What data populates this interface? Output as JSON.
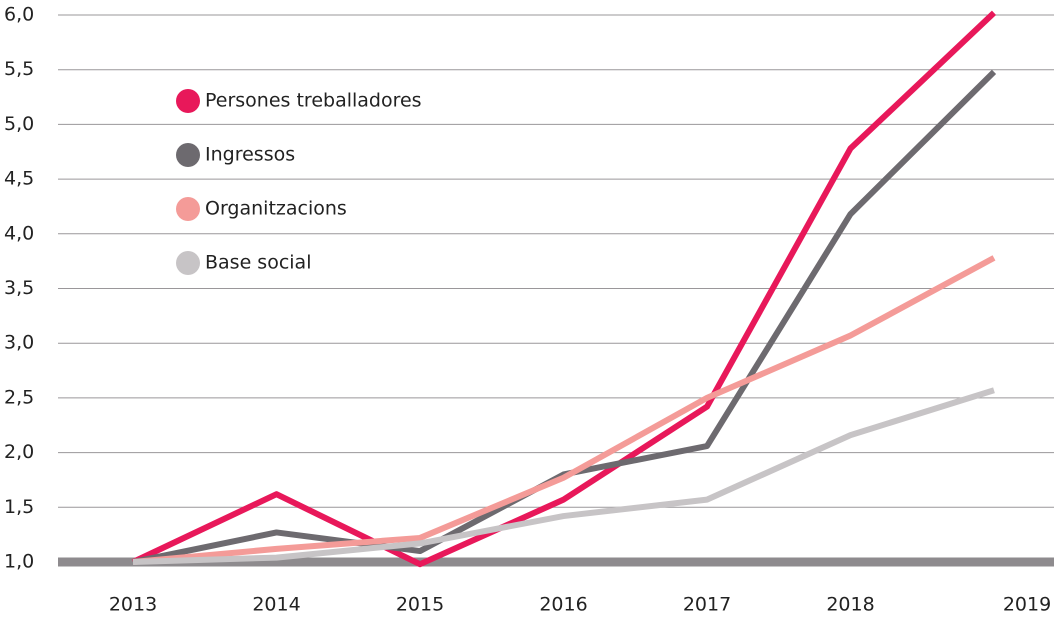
{
  "chart_data": {
    "type": "line",
    "categories": [
      "2013",
      "2014",
      "2015",
      "2016",
      "2017",
      "2018",
      "2019"
    ],
    "series": [
      {
        "name": "Persones treballadores",
        "color": "#e8185a",
        "values": [
          1.0,
          1.62,
          0.98,
          1.57,
          2.42,
          4.78,
          6.02
        ]
      },
      {
        "name": "Ingressos",
        "color": "#6d6a6f",
        "values": [
          1.0,
          1.27,
          1.1,
          1.8,
          2.06,
          4.18,
          5.48
        ]
      },
      {
        "name": "Organitzacions",
        "color": "#f49b98",
        "values": [
          1.0,
          1.12,
          1.22,
          1.77,
          2.5,
          3.07,
          3.78
        ]
      },
      {
        "name": "Base social",
        "color": "#c7c4c6",
        "values": [
          1.0,
          1.04,
          1.17,
          1.42,
          1.57,
          2.16,
          2.57
        ]
      }
    ],
    "ylim": [
      1,
      6
    ],
    "yticks": [
      {
        "value": 1,
        "label": "1,0"
      },
      {
        "value": 1.5,
        "label": "1,5"
      },
      {
        "value": 2,
        "label": "2,0"
      },
      {
        "value": 2.5,
        "label": "2,5"
      },
      {
        "value": 3,
        "label": "3,0"
      },
      {
        "value": 3.5,
        "label": "3,5"
      },
      {
        "value": 4,
        "label": "4,0"
      },
      {
        "value": 4.5,
        "label": "4,5"
      },
      {
        "value": 5,
        "label": "5,0"
      },
      {
        "value": 5.5,
        "label": "5,5"
      },
      {
        "value": 6,
        "label": "6,0"
      }
    ],
    "grid": true,
    "legend": "upper left"
  }
}
